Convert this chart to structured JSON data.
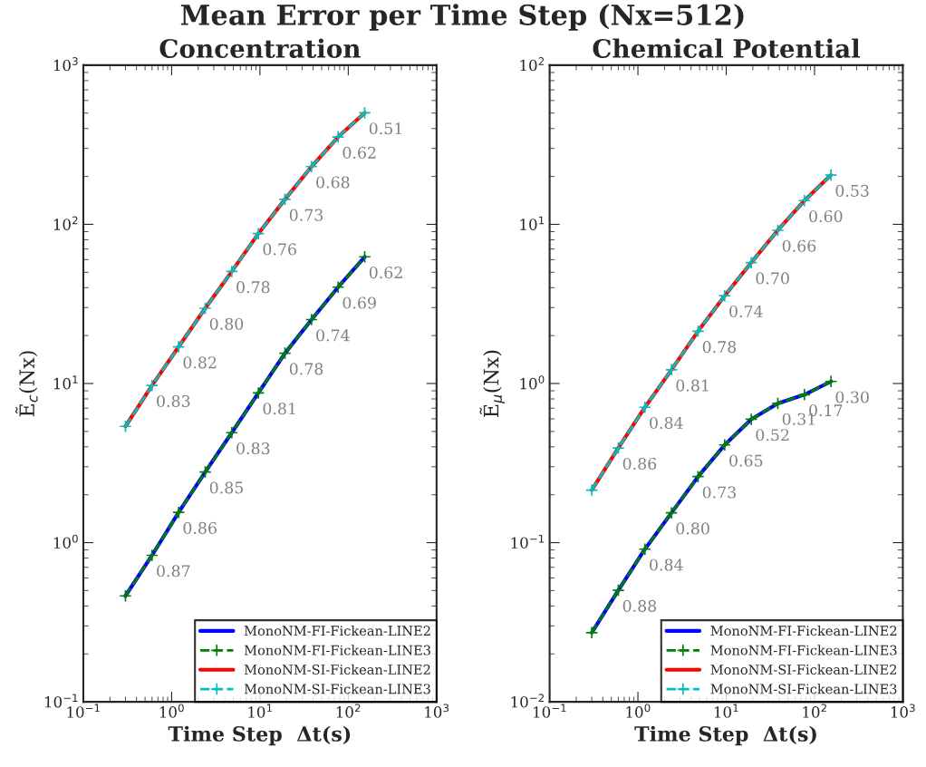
{
  "chart_data": [
    {
      "type": "line",
      "title": "Concentration",
      "xlabel": "Time Step  Δt(s)",
      "ylabel": "Ẽ$_{c}$(Nx)",
      "log": "xy",
      "grid": false,
      "legend": "bottom right",
      "x": [
        0.3,
        0.6,
        1.2,
        2.4,
        4.8,
        9.6,
        19.2,
        38.4,
        76.8,
        153.6
      ],
      "xlim": [
        0.1,
        1000
      ],
      "ylim": [
        0.1,
        1000
      ],
      "xticks": [
        {
          "value": 0.1,
          "label": "10$^{−1}$"
        },
        {
          "value": 1,
          "label": "10$^{0}$"
        },
        {
          "value": 10,
          "label": "10$^{1}$"
        },
        {
          "value": 100,
          "label": "10$^{2}$"
        },
        {
          "value": 1000,
          "label": "10$^{3}$"
        }
      ],
      "yticks": [
        {
          "value": 0.1,
          "label": "10$^{−1}$"
        },
        {
          "value": 1,
          "label": "10$^{0}$"
        },
        {
          "value": 10,
          "label": "10$^{1}$"
        },
        {
          "value": 100,
          "label": "10$^{2}$"
        },
        {
          "value": 1000,
          "label": "10$^{3}$"
        }
      ],
      "series": [
        {
          "name": "MonoNM-FI-Fickean-LINE2",
          "color": "#0000ff",
          "line_style": "solid",
          "marker": "none",
          "values": [
            0.463,
            0.833,
            1.55,
            2.78,
            4.91,
            8.72,
            15.5,
            25.2,
            40.3,
            62.5
          ]
        },
        {
          "name": "MonoNM-FI-Fickean-LINE3",
          "color": "#008000",
          "line_style": "dashed",
          "marker": "cross",
          "values": [
            0.463,
            0.833,
            1.55,
            2.78,
            4.91,
            8.72,
            15.5,
            25.2,
            40.3,
            62.5
          ]
        },
        {
          "name": "MonoNM-SI-Fickean-LINE2",
          "color": "#ff0000",
          "line_style": "solid",
          "marker": "none",
          "values": [
            5.38,
            9.72,
            17.0,
            29.7,
            50.6,
            87.5,
            143.6,
            230.6,
            354,
            502
          ]
        },
        {
          "name": "MonoNM-SI-Fickean-LINE3",
          "color": "#00bfbf",
          "line_style": "dashed",
          "marker": "cross",
          "values": [
            5.38,
            9.72,
            17.0,
            29.7,
            50.6,
            87.5,
            143.6,
            230.6,
            354,
            502
          ]
        }
      ],
      "annotations": [
        "Mean Error per Time Step (Nx=512)",
        {
          "text": "0.87",
          "x": 0.6,
          "y": 0.833
        },
        {
          "text": "0.86",
          "x": 1.2,
          "y": 1.55
        },
        {
          "text": "0.85",
          "x": 2.4,
          "y": 2.78
        },
        {
          "text": "0.83",
          "x": 4.8,
          "y": 4.91
        },
        {
          "text": "0.81",
          "x": 9.6,
          "y": 8.72
        },
        {
          "text": "0.78",
          "x": 19.2,
          "y": 15.5
        },
        {
          "text": "0.74",
          "x": 38.4,
          "y": 25.2
        },
        {
          "text": "0.69",
          "x": 76.8,
          "y": 40.3
        },
        {
          "text": "0.62",
          "x": 153.6,
          "y": 62.5
        },
        {
          "text": "0.83",
          "x": 0.6,
          "y": 9.72
        },
        {
          "text": "0.82",
          "x": 1.2,
          "y": 17.0
        },
        {
          "text": "0.80",
          "x": 2.4,
          "y": 29.7
        },
        {
          "text": "0.78",
          "x": 4.8,
          "y": 50.6
        },
        {
          "text": "0.76",
          "x": 9.6,
          "y": 87.5
        },
        {
          "text": "0.73",
          "x": 19.2,
          "y": 143.6
        },
        {
          "text": "0.68",
          "x": 38.4,
          "y": 230.6
        },
        {
          "text": "0.62",
          "x": 76.8,
          "y": 354
        },
        {
          "text": "0.51",
          "x": 153.6,
          "y": 502
        }
      ]
    },
    {
      "type": "line",
      "title": "Chemical Potential",
      "xlabel": "Time Step  Δt(s)",
      "ylabel": "Ẽ$_{μ}$(Nx)",
      "log": "xy",
      "grid": false,
      "legend": "bottom right",
      "x": [
        0.3,
        0.6,
        1.2,
        2.4,
        4.8,
        9.6,
        19.2,
        38.4,
        76.8,
        153.6
      ],
      "xlim": [
        0.1,
        1000
      ],
      "ylim": [
        0.01,
        100
      ],
      "xticks": [
        {
          "value": 0.1,
          "label": "10$^{−1}$"
        },
        {
          "value": 1,
          "label": "10$^{0}$"
        },
        {
          "value": 10,
          "label": "10$^{1}$"
        },
        {
          "value": 100,
          "label": "10$^{2}$"
        },
        {
          "value": 1000,
          "label": "10$^{3}$"
        }
      ],
      "yticks": [
        {
          "value": 0.01,
          "label": "10$^{−2}$"
        },
        {
          "value": 0.1,
          "label": "10$^{−1}$"
        },
        {
          "value": 1,
          "label": "10$^{0}$"
        },
        {
          "value": 10,
          "label": "10$^{1}$"
        },
        {
          "value": 100,
          "label": "10$^{2}$"
        }
      ],
      "series": [
        {
          "name": "MonoNM-FI-Fickean-LINE2",
          "color": "#0000ff",
          "line_style": "solid",
          "marker": "none",
          "values": [
            0.0272,
            0.0502,
            0.091,
            0.154,
            0.26,
            0.411,
            0.596,
            0.75,
            0.851,
            1.03
          ]
        },
        {
          "name": "MonoNM-FI-Fickean-LINE3",
          "color": "#008000",
          "line_style": "dashed",
          "marker": "cross",
          "values": [
            0.0272,
            0.0502,
            0.091,
            0.154,
            0.26,
            0.411,
            0.596,
            0.75,
            0.851,
            1.03
          ]
        },
        {
          "name": "MonoNM-SI-Fickean-LINE2",
          "color": "#ff0000",
          "line_style": "solid",
          "marker": "none",
          "values": [
            0.214,
            0.393,
            0.709,
            1.22,
            2.13,
            3.56,
            5.75,
            9.18,
            14.1,
            20.4
          ]
        },
        {
          "name": "MonoNM-SI-Fickean-LINE3",
          "color": "#00bfbf",
          "line_style": "dashed",
          "marker": "cross",
          "values": [
            0.214,
            0.393,
            0.709,
            1.22,
            2.13,
            3.56,
            5.75,
            9.18,
            14.1,
            20.4
          ]
        }
      ],
      "annotations": [
        {
          "text": "0.88",
          "x": 0.6,
          "y": 0.0502
        },
        {
          "text": "0.84",
          "x": 1.2,
          "y": 0.091
        },
        {
          "text": "0.80",
          "x": 2.4,
          "y": 0.154
        },
        {
          "text": "0.73",
          "x": 4.8,
          "y": 0.26
        },
        {
          "text": "0.65",
          "x": 9.6,
          "y": 0.411
        },
        {
          "text": "0.52",
          "x": 19.2,
          "y": 0.596
        },
        {
          "text": "0.31",
          "x": 38.4,
          "y": 0.75
        },
        {
          "text": "0.17",
          "x": 76.8,
          "y": 0.851
        },
        {
          "text": "0.30",
          "x": 153.6,
          "y": 1.03
        },
        {
          "text": "0.86",
          "x": 0.6,
          "y": 0.393
        },
        {
          "text": "0.84",
          "x": 1.2,
          "y": 0.709
        },
        {
          "text": "0.81",
          "x": 2.4,
          "y": 1.22
        },
        {
          "text": "0.78",
          "x": 4.8,
          "y": 2.13
        },
        {
          "text": "0.74",
          "x": 9.6,
          "y": 3.56
        },
        {
          "text": "0.70",
          "x": 19.2,
          "y": 5.75
        },
        {
          "text": "0.66",
          "x": 38.4,
          "y": 9.18
        },
        {
          "text": "0.60",
          "x": 76.8,
          "y": 14.1
        },
        {
          "text": "0.53",
          "x": 153.6,
          "y": 20.4
        }
      ]
    }
  ]
}
